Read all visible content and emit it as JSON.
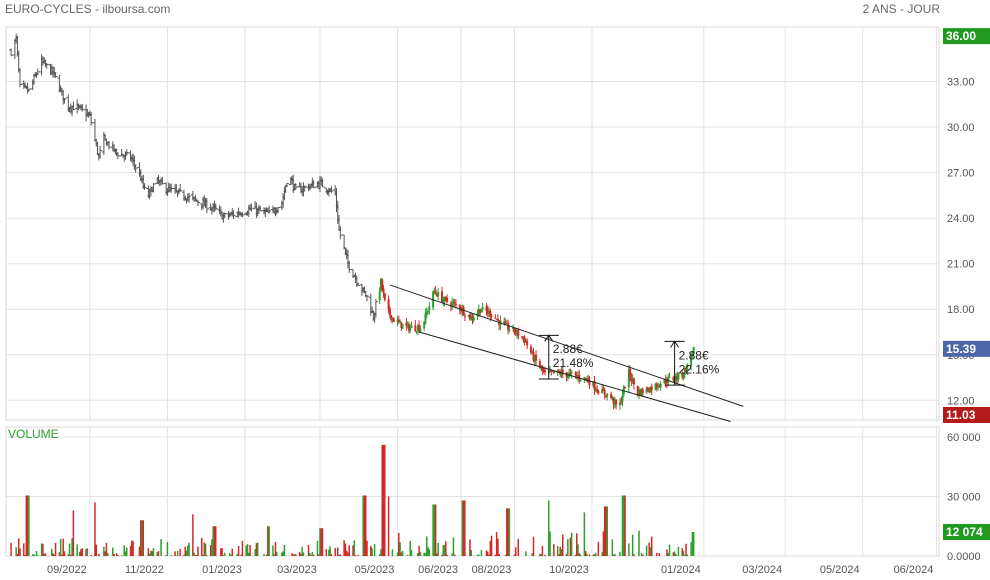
{
  "header": {
    "title": "EURO-CYCLES - ilboursa.com",
    "period": "2 ANS - JOUR"
  },
  "colors": {
    "up": "#2ca02c",
    "down": "#d62728",
    "neutral": "#555555",
    "last_badge": "#4b67a8",
    "high_badge": "#1f9a1f",
    "low_badge": "#b31b1b",
    "volume_badge": "#1f9a1f",
    "volume_label": "#2ca02c",
    "grid": "#e3e3e3"
  },
  "chart_data": [
    {
      "type": "ohlc",
      "price_axis": {
        "ticks": [
          "33.00",
          "30.00",
          "27.00",
          "24.00",
          "21.00",
          "18.00",
          "15.00",
          "12.00"
        ],
        "ylim": [
          10.7,
          36.6
        ]
      },
      "x_axis": {
        "tick_labels": [
          "09/2022",
          "11/2022",
          "01/2023",
          "03/2023",
          "05/2023",
          "06/2023",
          "08/2023",
          "10/2023",
          "01/2024",
          "03/2024",
          "05/2024",
          "06/2024"
        ]
      },
      "badges": {
        "high": "36.00",
        "last": "15.39",
        "low": "11.03"
      },
      "anchors": [
        [
          "2022-07-01",
          35.0
        ],
        [
          "2022-07-05",
          35.8
        ],
        [
          "2022-07-08",
          32.6
        ],
        [
          "2022-07-15",
          32.4
        ],
        [
          "2022-07-25",
          34.3
        ],
        [
          "2022-08-03",
          33.6
        ],
        [
          "2022-08-08",
          32.6
        ],
        [
          "2022-08-14",
          31.4
        ],
        [
          "2022-08-22",
          31.3
        ],
        [
          "2022-09-01",
          30.7
        ],
        [
          "2022-09-08",
          28.0
        ],
        [
          "2022-09-12",
          29.2
        ],
        [
          "2022-09-22",
          28.3
        ],
        [
          "2022-10-03",
          28.0
        ],
        [
          "2022-10-10",
          26.9
        ],
        [
          "2022-10-16",
          25.3
        ],
        [
          "2022-10-23",
          26.5
        ],
        [
          "2022-11-01",
          25.9
        ],
        [
          "2022-11-14",
          25.5
        ],
        [
          "2022-11-28",
          25.0
        ],
        [
          "2022-12-08",
          24.6
        ],
        [
          "2022-12-15",
          24.1
        ],
        [
          "2022-12-25",
          24.3
        ],
        [
          "2023-01-06",
          24.6
        ],
        [
          "2023-01-20",
          24.3
        ],
        [
          "2023-01-30",
          25.0
        ],
        [
          "2023-02-04",
          26.9
        ],
        [
          "2023-02-10",
          25.8
        ],
        [
          "2023-02-20",
          26.1
        ],
        [
          "2023-03-01",
          26.3
        ],
        [
          "2023-03-06",
          26.0
        ],
        [
          "2023-03-13",
          25.6
        ],
        [
          "2023-03-16",
          23.2
        ],
        [
          "2023-03-23",
          21.0
        ],
        [
          "2023-04-01",
          19.6
        ],
        [
          "2023-04-07",
          18.8
        ],
        [
          "2023-04-12",
          17.5
        ],
        [
          "2023-04-18",
          19.8
        ],
        [
          "2023-04-22",
          18.0
        ],
        [
          "2023-04-29",
          17.2
        ],
        [
          "2023-05-08",
          16.8
        ],
        [
          "2023-05-20",
          16.8
        ],
        [
          "2023-05-30",
          19.2
        ],
        [
          "2023-06-06",
          18.6
        ],
        [
          "2023-06-18",
          18.2
        ],
        [
          "2023-06-28",
          17.4
        ],
        [
          "2023-07-05",
          18.0
        ],
        [
          "2023-07-14",
          17.7
        ],
        [
          "2023-07-22",
          17.0
        ],
        [
          "2023-08-02",
          16.5
        ],
        [
          "2023-08-09",
          16.0
        ],
        [
          "2023-08-16",
          14.8
        ],
        [
          "2023-08-25",
          13.7
        ],
        [
          "2023-09-05",
          13.8
        ],
        [
          "2023-09-18",
          13.6
        ],
        [
          "2023-09-27",
          13.4
        ],
        [
          "2023-10-07",
          12.6
        ],
        [
          "2023-10-15",
          12.3
        ],
        [
          "2023-10-22",
          11.4
        ],
        [
          "2023-10-26",
          12.7
        ],
        [
          "2023-10-30",
          13.8
        ],
        [
          "2023-11-06",
          12.5
        ],
        [
          "2023-11-16",
          12.8
        ],
        [
          "2023-11-25",
          13.2
        ],
        [
          "2023-12-02",
          13.4
        ],
        [
          "2023-12-10",
          13.6
        ],
        [
          "2023-12-15",
          14.2
        ],
        [
          "2023-12-20",
          15.4
        ]
      ],
      "annotations": [
        {
          "label_value": "2.88€",
          "label_pct": "21.48%",
          "date": "2023-08-28",
          "from": 13.4,
          "to": 16.28
        },
        {
          "label_value": "2.88€",
          "label_pct": "22.16%",
          "date": "2023-12-05",
          "from": 13.0,
          "to": 15.88
        }
      ],
      "channel": [
        {
          "from": [
            "2023-04-25",
            19.6
          ],
          "to": [
            "2024-01-28",
            11.6
          ]
        },
        {
          "from": [
            "2023-05-18",
            16.5
          ],
          "to": [
            "2024-01-18",
            10.6
          ]
        }
      ]
    },
    {
      "type": "bar",
      "title": "VOLUME",
      "y_axis": {
        "ticks": [
          "60 000",
          "30 000",
          "0.0000"
        ],
        "ylim": [
          0,
          60000
        ]
      },
      "badge": "12 074",
      "peaks": [
        [
          "2022-07-14",
          30500
        ],
        [
          "2022-08-20",
          23000
        ],
        [
          "2022-09-04",
          27000
        ],
        [
          "2022-10-12",
          18000
        ],
        [
          "2022-11-20",
          21000
        ],
        [
          "2022-12-08",
          15000
        ],
        [
          "2023-01-20",
          15000
        ],
        [
          "2023-03-02",
          14000
        ],
        [
          "2023-04-05",
          30500
        ],
        [
          "2023-04-20",
          56000
        ],
        [
          "2023-04-23",
          30000
        ],
        [
          "2023-05-30",
          26000
        ],
        [
          "2023-06-22",
          28000
        ],
        [
          "2023-07-27",
          24000
        ],
        [
          "2023-08-27",
          28000
        ],
        [
          "2023-09-24",
          22000
        ],
        [
          "2023-10-12",
          25000
        ],
        [
          "2023-10-26",
          30500
        ],
        [
          "2023-12-20",
          12074
        ]
      ]
    }
  ]
}
